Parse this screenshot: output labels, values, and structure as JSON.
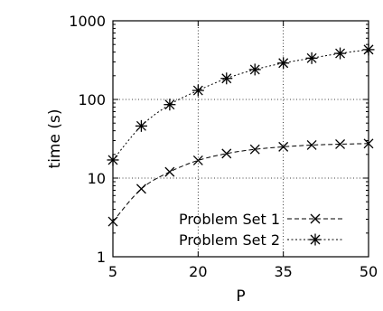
{
  "chart_data": {
    "type": "line",
    "xlabel": "P",
    "ylabel": "time (s)",
    "xlim": [
      5,
      50
    ],
    "ylim": [
      1,
      1000
    ],
    "yscale": "log",
    "grid": true,
    "legend_position": "bottom-right",
    "x_ticks": [
      5,
      20,
      35,
      50
    ],
    "x_tick_labels": [
      "5",
      "20",
      "35",
      "50"
    ],
    "y_ticks": [
      1,
      10,
      100,
      1000
    ],
    "y_tick_labels": [
      "1",
      "10",
      "100",
      "1000"
    ],
    "x": [
      5,
      10,
      15,
      20,
      25,
      30,
      35,
      40,
      45,
      50
    ],
    "series": [
      {
        "name": "Problem Set 1",
        "marker": "x",
        "line_style": "dashed",
        "values": [
          2.8,
          7.3,
          12.0,
          16.8,
          20.5,
          23.2,
          25.0,
          26.3,
          27.0,
          27.5
        ]
      },
      {
        "name": "Problem Set 2",
        "marker": "asterisk",
        "line_style": "dotted",
        "values": [
          17,
          46,
          86,
          130,
          185,
          240,
          290,
          335,
          385,
          430
        ]
      }
    ]
  }
}
